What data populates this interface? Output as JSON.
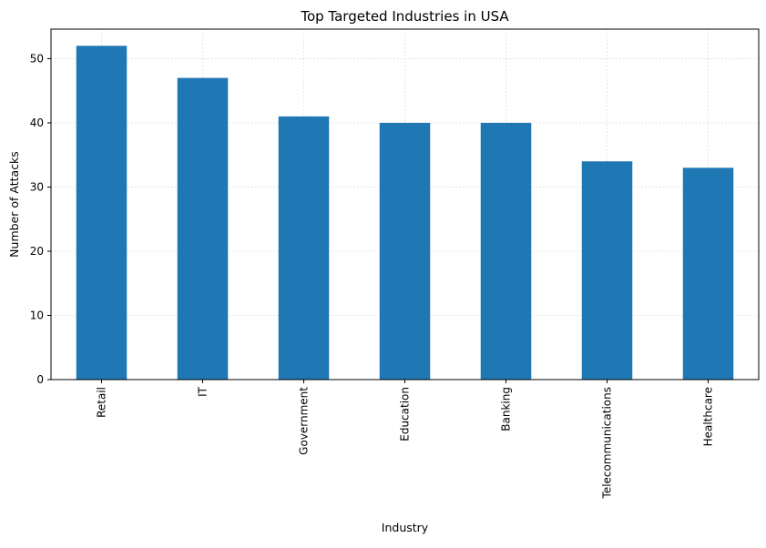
{
  "chart_data": {
    "type": "bar",
    "title": "Top Targeted Industries in USA",
    "xlabel": "Industry",
    "ylabel": "Number of Attacks",
    "categories": [
      "Retail",
      "IT",
      "Government",
      "Education",
      "Banking",
      "Telecommunications",
      "Healthcare"
    ],
    "values": [
      52,
      47,
      41,
      40,
      40,
      34,
      33
    ],
    "ylim": [
      0,
      54.6
    ],
    "yticks": [
      0,
      10,
      20,
      30,
      40,
      50
    ],
    "grid": true,
    "bar_color": "#1f77b4"
  }
}
